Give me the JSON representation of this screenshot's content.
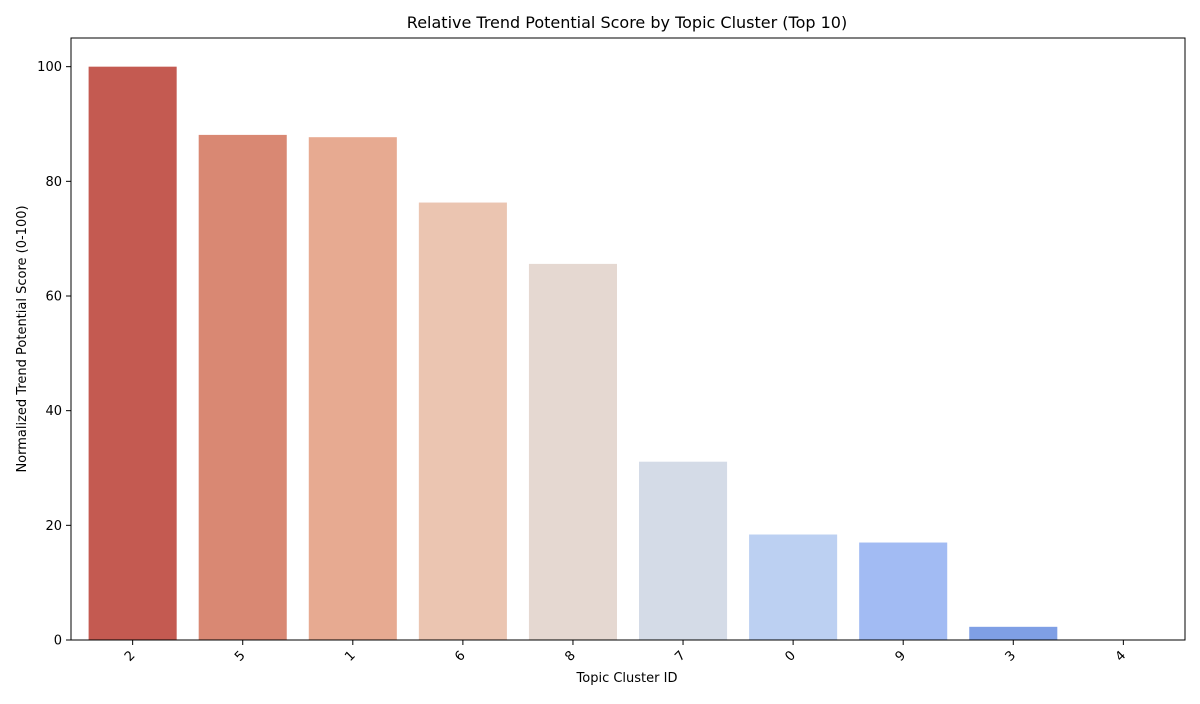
{
  "chart_data": {
    "type": "bar",
    "title": "Relative Trend Potential Score by Topic Cluster (Top 10)",
    "xlabel": "Topic Cluster ID",
    "ylabel": "Normalized Trend Potential Score (0-100)",
    "categories": [
      "2",
      "5",
      "1",
      "6",
      "8",
      "7",
      "0",
      "9",
      "3",
      "4"
    ],
    "values": [
      100.0,
      88.1,
      87.7,
      76.3,
      65.6,
      31.1,
      18.4,
      17.0,
      2.3,
      0.0
    ],
    "colors": [
      "#c45a51",
      "#d98873",
      "#e7aa91",
      "#ebc5b1",
      "#e5d8d1",
      "#d4dbe7",
      "#bcd0f2",
      "#a2bbf3",
      "#7f9fe5",
      "#5b7bd6"
    ],
    "ylim": [
      0,
      105
    ],
    "yticks": [
      0,
      20,
      40,
      60,
      80,
      100
    ],
    "grid": false,
    "legend": "none"
  }
}
